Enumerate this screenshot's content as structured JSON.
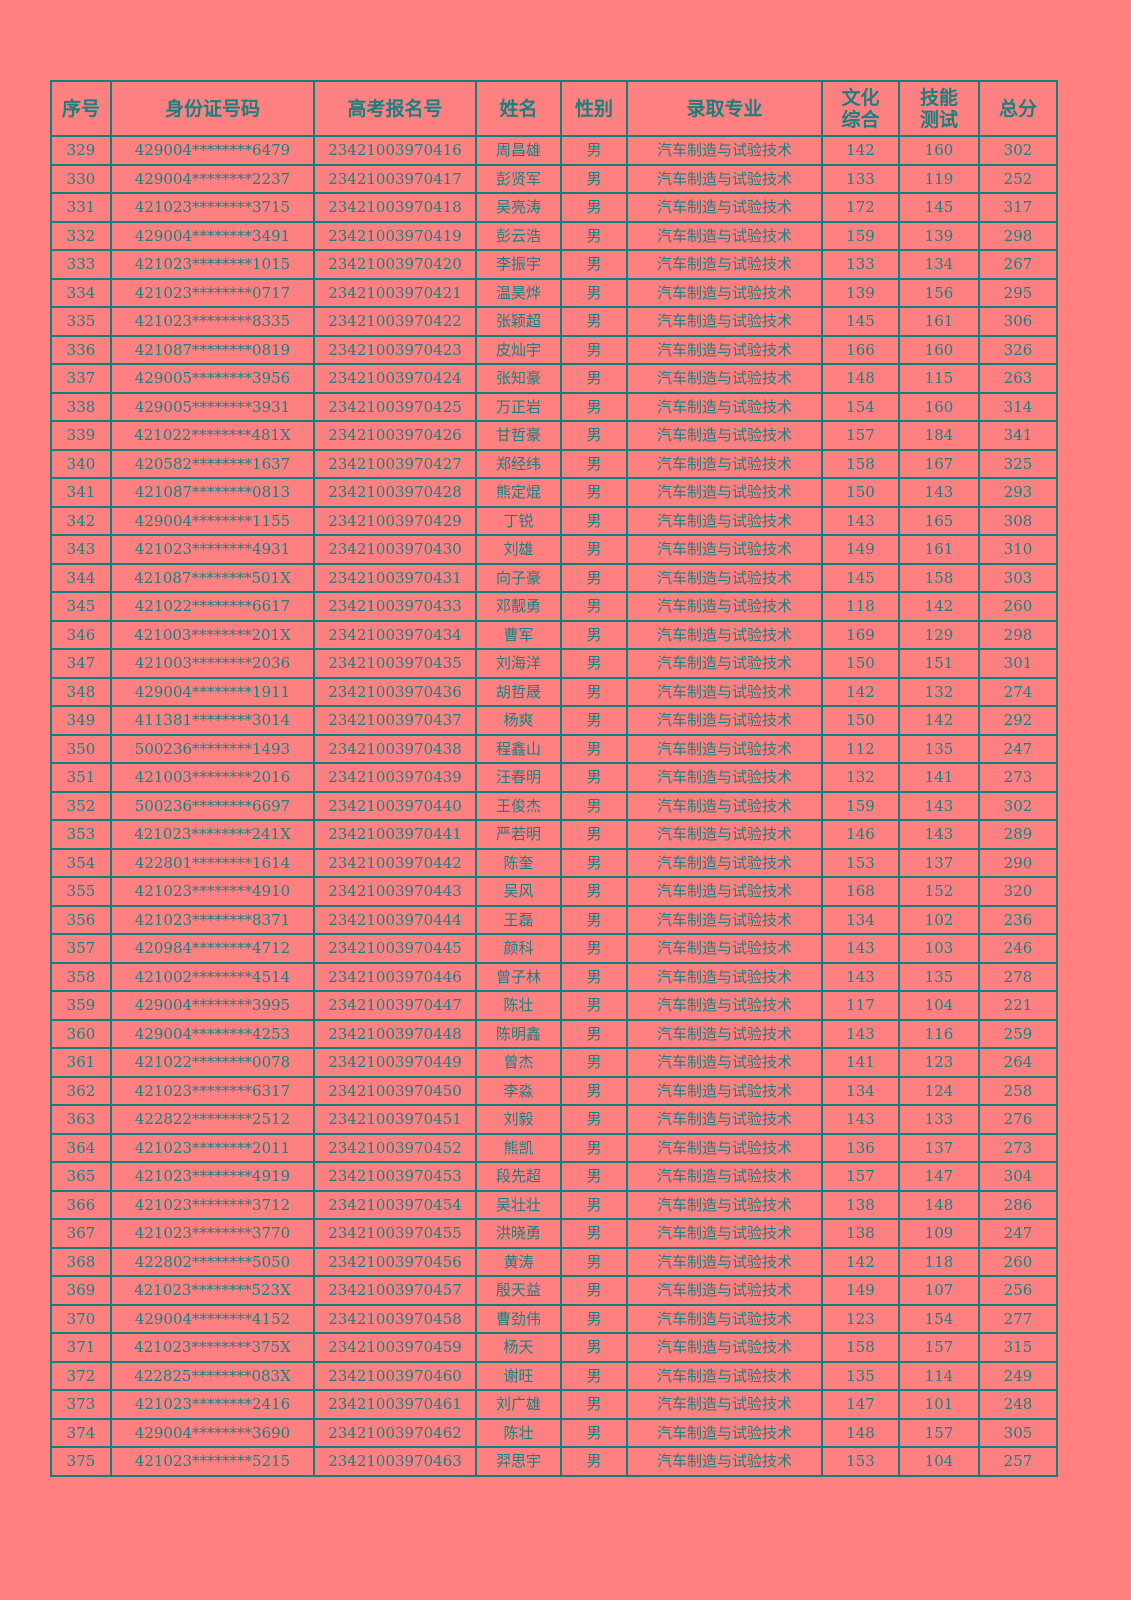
{
  "colors": {
    "background": "#ff8080",
    "text": "#1a8080",
    "border": "#0f7f7f"
  },
  "headers": [
    "序号",
    "身份证号码",
    "高考报名号",
    "姓名",
    "性别",
    "录取专业",
    "文化综合",
    "技能测试",
    "总分"
  ],
  "rows": [
    [
      "329",
      "429004********6479",
      "23421003970416",
      "周昌雄",
      "男",
      "汽车制造与试验技术",
      "142",
      "160",
      "302"
    ],
    [
      "330",
      "429004********2237",
      "23421003970417",
      "彭贤军",
      "男",
      "汽车制造与试验技术",
      "133",
      "119",
      "252"
    ],
    [
      "331",
      "421023********3715",
      "23421003970418",
      "吴亮涛",
      "男",
      "汽车制造与试验技术",
      "172",
      "145",
      "317"
    ],
    [
      "332",
      "429004********3491",
      "23421003970419",
      "彭云浩",
      "男",
      "汽车制造与试验技术",
      "159",
      "139",
      "298"
    ],
    [
      "333",
      "421023********1015",
      "23421003970420",
      "李振宇",
      "男",
      "汽车制造与试验技术",
      "133",
      "134",
      "267"
    ],
    [
      "334",
      "421023********0717",
      "23421003970421",
      "温昊烨",
      "男",
      "汽车制造与试验技术",
      "139",
      "156",
      "295"
    ],
    [
      "335",
      "421023********8335",
      "23421003970422",
      "张颖超",
      "男",
      "汽车制造与试验技术",
      "145",
      "161",
      "306"
    ],
    [
      "336",
      "421087********0819",
      "23421003970423",
      "皮灿宇",
      "男",
      "汽车制造与试验技术",
      "166",
      "160",
      "326"
    ],
    [
      "337",
      "429005********3956",
      "23421003970424",
      "张知豪",
      "男",
      "汽车制造与试验技术",
      "148",
      "115",
      "263"
    ],
    [
      "338",
      "429005********3931",
      "23421003970425",
      "万正岩",
      "男",
      "汽车制造与试验技术",
      "154",
      "160",
      "314"
    ],
    [
      "339",
      "421022********481X",
      "23421003970426",
      "甘哲豪",
      "男",
      "汽车制造与试验技术",
      "157",
      "184",
      "341"
    ],
    [
      "340",
      "420582********1637",
      "23421003970427",
      "郑经纬",
      "男",
      "汽车制造与试验技术",
      "158",
      "167",
      "325"
    ],
    [
      "341",
      "421087********0813",
      "23421003970428",
      "熊定焜",
      "男",
      "汽车制造与试验技术",
      "150",
      "143",
      "293"
    ],
    [
      "342",
      "429004********1155",
      "23421003970429",
      "丁锐",
      "男",
      "汽车制造与试验技术",
      "143",
      "165",
      "308"
    ],
    [
      "343",
      "421023********4931",
      "23421003970430",
      "刘雄",
      "男",
      "汽车制造与试验技术",
      "149",
      "161",
      "310"
    ],
    [
      "344",
      "421087********501X",
      "23421003970431",
      "向子豪",
      "男",
      "汽车制造与试验技术",
      "145",
      "158",
      "303"
    ],
    [
      "345",
      "421022********6617",
      "23421003970433",
      "邓靓勇",
      "男",
      "汽车制造与试验技术",
      "118",
      "142",
      "260"
    ],
    [
      "346",
      "421003********201X",
      "23421003970434",
      "曹军",
      "男",
      "汽车制造与试验技术",
      "169",
      "129",
      "298"
    ],
    [
      "347",
      "421003********2036",
      "23421003970435",
      "刘海洋",
      "男",
      "汽车制造与试验技术",
      "150",
      "151",
      "301"
    ],
    [
      "348",
      "429004********1911",
      "23421003970436",
      "胡哲晟",
      "男",
      "汽车制造与试验技术",
      "142",
      "132",
      "274"
    ],
    [
      "349",
      "411381********3014",
      "23421003970437",
      "杨爽",
      "男",
      "汽车制造与试验技术",
      "150",
      "142",
      "292"
    ],
    [
      "350",
      "500236********1493",
      "23421003970438",
      "程鑫山",
      "男",
      "汽车制造与试验技术",
      "112",
      "135",
      "247"
    ],
    [
      "351",
      "421003********2016",
      "23421003970439",
      "汪春明",
      "男",
      "汽车制造与试验技术",
      "132",
      "141",
      "273"
    ],
    [
      "352",
      "500236********6697",
      "23421003970440",
      "王俊杰",
      "男",
      "汽车制造与试验技术",
      "159",
      "143",
      "302"
    ],
    [
      "353",
      "421023********241X",
      "23421003970441",
      "严若明",
      "男",
      "汽车制造与试验技术",
      "146",
      "143",
      "289"
    ],
    [
      "354",
      "422801********1614",
      "23421003970442",
      "陈奎",
      "男",
      "汽车制造与试验技术",
      "153",
      "137",
      "290"
    ],
    [
      "355",
      "421023********4910",
      "23421003970443",
      "吴风",
      "男",
      "汽车制造与试验技术",
      "168",
      "152",
      "320"
    ],
    [
      "356",
      "421023********8371",
      "23421003970444",
      "王磊",
      "男",
      "汽车制造与试验技术",
      "134",
      "102",
      "236"
    ],
    [
      "357",
      "420984********4712",
      "23421003970445",
      "颜科",
      "男",
      "汽车制造与试验技术",
      "143",
      "103",
      "246"
    ],
    [
      "358",
      "421002********4514",
      "23421003970446",
      "曾子林",
      "男",
      "汽车制造与试验技术",
      "143",
      "135",
      "278"
    ],
    [
      "359",
      "429004********3995",
      "23421003970447",
      "陈壮",
      "男",
      "汽车制造与试验技术",
      "117",
      "104",
      "221"
    ],
    [
      "360",
      "429004********4253",
      "23421003970448",
      "陈明鑫",
      "男",
      "汽车制造与试验技术",
      "143",
      "116",
      "259"
    ],
    [
      "361",
      "421022********0078",
      "23421003970449",
      "曾杰",
      "男",
      "汽车制造与试验技术",
      "141",
      "123",
      "264"
    ],
    [
      "362",
      "421023********6317",
      "23421003970450",
      "李淼",
      "男",
      "汽车制造与试验技术",
      "134",
      "124",
      "258"
    ],
    [
      "363",
      "422822********2512",
      "23421003970451",
      "刘毅",
      "男",
      "汽车制造与试验技术",
      "143",
      "133",
      "276"
    ],
    [
      "364",
      "421023********2011",
      "23421003970452",
      "熊凯",
      "男",
      "汽车制造与试验技术",
      "136",
      "137",
      "273"
    ],
    [
      "365",
      "421023********4919",
      "23421003970453",
      "段先超",
      "男",
      "汽车制造与试验技术",
      "157",
      "147",
      "304"
    ],
    [
      "366",
      "421023********3712",
      "23421003970454",
      "吴壮壮",
      "男",
      "汽车制造与试验技术",
      "138",
      "148",
      "286"
    ],
    [
      "367",
      "421023********3770",
      "23421003970455",
      "洪晓勇",
      "男",
      "汽车制造与试验技术",
      "138",
      "109",
      "247"
    ],
    [
      "368",
      "422802********5050",
      "23421003970456",
      "黄涛",
      "男",
      "汽车制造与试验技术",
      "142",
      "118",
      "260"
    ],
    [
      "369",
      "421023********523X",
      "23421003970457",
      "殷天益",
      "男",
      "汽车制造与试验技术",
      "149",
      "107",
      "256"
    ],
    [
      "370",
      "429004********4152",
      "23421003970458",
      "曹劲伟",
      "男",
      "汽车制造与试验技术",
      "123",
      "154",
      "277"
    ],
    [
      "371",
      "421023********375X",
      "23421003970459",
      "杨天",
      "男",
      "汽车制造与试验技术",
      "158",
      "157",
      "315"
    ],
    [
      "372",
      "422825********083X",
      "23421003970460",
      "谢旺",
      "男",
      "汽车制造与试验技术",
      "135",
      "114",
      "249"
    ],
    [
      "373",
      "421023********2416",
      "23421003970461",
      "刘广雄",
      "男",
      "汽车制造与试验技术",
      "147",
      "101",
      "248"
    ],
    [
      "374",
      "429004********3690",
      "23421003970462",
      "陈壮",
      "男",
      "汽车制造与试验技术",
      "148",
      "157",
      "305"
    ],
    [
      "375",
      "421023********5215",
      "23421003970463",
      "羿思宇",
      "男",
      "汽车制造与试验技术",
      "153",
      "104",
      "257"
    ]
  ]
}
